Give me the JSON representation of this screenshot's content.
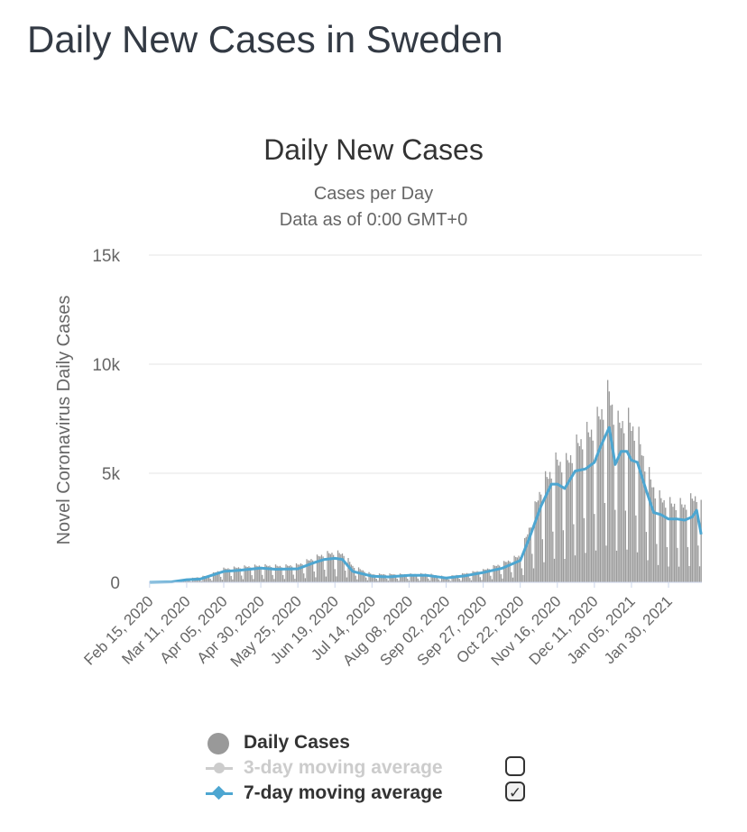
{
  "page_title": "Daily New Cases in Sweden",
  "colors": {
    "bar": "#9b9b9b",
    "ma7": "#4da6d1",
    "ma3_disabled": "#cccccc",
    "grid": "#e6e6e6"
  },
  "legend": {
    "items": [
      {
        "label": "Daily Cases",
        "checkbox": "none"
      },
      {
        "label": "3-day moving average",
        "checkbox": "unchecked"
      },
      {
        "label": "7-day moving average",
        "checkbox": "checked"
      }
    ],
    "check_glyph": "✓"
  },
  "chart_data": {
    "type": "bar",
    "title": "Daily New Cases",
    "subtitle": [
      "Cases per Day",
      "Data as of 0:00 GMT+0"
    ],
    "ylabel": "Novel Coronavirus Daily Cases",
    "ylim": [
      0,
      15000
    ],
    "yticks": [
      0,
      5000,
      10000,
      15000
    ],
    "ytick_labels": [
      "0",
      "5k",
      "10k",
      "15k"
    ],
    "x_tick_labels": [
      "Feb 15, 2020",
      "Mar 11, 2020",
      "Apr 05, 2020",
      "Apr 30, 2020",
      "May 25, 2020",
      "Jun 19, 2020",
      "Jul 14, 2020",
      "Aug 08, 2020",
      "Sep 02, 2020",
      "Sep 27, 2020",
      "Oct 22, 2020",
      "Nov 16, 2020",
      "Dec 11, 2020",
      "Jan 05, 2021",
      "Jan 30, 2021"
    ],
    "x_range": [
      "2020-02-15",
      "2021-02-21"
    ],
    "grid": true,
    "legend_position": "bottom",
    "series": [
      {
        "name": "Daily Cases",
        "type": "bar",
        "weekly_pattern": [
          0.25,
          1.35,
          1.25,
          1.2,
          1.25,
          1.15,
          0.55
        ],
        "trend": [
          [
            "2020-02-15",
            0
          ],
          [
            "2020-03-01",
            20
          ],
          [
            "2020-03-11",
            120
          ],
          [
            "2020-03-25",
            250
          ],
          [
            "2020-04-05",
            500
          ],
          [
            "2020-04-20",
            580
          ],
          [
            "2020-04-30",
            620
          ],
          [
            "2020-05-15",
            600
          ],
          [
            "2020-05-25",
            650
          ],
          [
            "2020-06-05",
            900
          ],
          [
            "2020-06-12",
            1050
          ],
          [
            "2020-06-19",
            1100
          ],
          [
            "2020-06-25",
            1050
          ],
          [
            "2020-07-01",
            600
          ],
          [
            "2020-07-14",
            300
          ],
          [
            "2020-08-08",
            300
          ],
          [
            "2020-08-20",
            320
          ],
          [
            "2020-09-02",
            200
          ],
          [
            "2020-09-27",
            450
          ],
          [
            "2020-10-10",
            700
          ],
          [
            "2020-10-22",
            1000
          ],
          [
            "2020-10-28",
            2000
          ],
          [
            "2020-11-05",
            3500
          ],
          [
            "2020-11-16",
            4500
          ],
          [
            "2020-11-21",
            4300
          ],
          [
            "2020-12-01",
            5200
          ],
          [
            "2020-12-11",
            5700
          ],
          [
            "2020-12-21",
            7000
          ],
          [
            "2020-12-26",
            5800
          ],
          [
            "2021-01-02",
            6000
          ],
          [
            "2021-01-09",
            5500
          ],
          [
            "2021-01-15",
            4200
          ],
          [
            "2021-01-22",
            3200
          ],
          [
            "2021-01-30",
            2900
          ],
          [
            "2021-02-10",
            2850
          ],
          [
            "2021-02-18",
            3200
          ],
          [
            "2021-02-21",
            2800
          ]
        ]
      },
      {
        "name": "7-day moving average",
        "type": "line",
        "points": [
          [
            "2020-02-15",
            0
          ],
          [
            "2020-03-01",
            20
          ],
          [
            "2020-03-11",
            120
          ],
          [
            "2020-03-20",
            150
          ],
          [
            "2020-04-05",
            500
          ],
          [
            "2020-04-15",
            550
          ],
          [
            "2020-04-30",
            650
          ],
          [
            "2020-05-10",
            600
          ],
          [
            "2020-05-25",
            620
          ],
          [
            "2020-06-05",
            900
          ],
          [
            "2020-06-12",
            1050
          ],
          [
            "2020-06-19",
            1100
          ],
          [
            "2020-06-24",
            1050
          ],
          [
            "2020-07-01",
            500
          ],
          [
            "2020-07-14",
            280
          ],
          [
            "2020-07-25",
            250
          ],
          [
            "2020-08-08",
            320
          ],
          [
            "2020-08-20",
            320
          ],
          [
            "2020-09-02",
            200
          ],
          [
            "2020-09-15",
            300
          ],
          [
            "2020-09-27",
            450
          ],
          [
            "2020-10-10",
            650
          ],
          [
            "2020-10-22",
            1000
          ],
          [
            "2020-10-28",
            2000
          ],
          [
            "2020-11-05",
            3500
          ],
          [
            "2020-11-12",
            4500
          ],
          [
            "2020-11-16",
            4500
          ],
          [
            "2020-11-21",
            4300
          ],
          [
            "2020-11-28",
            5100
          ],
          [
            "2020-12-05",
            5200
          ],
          [
            "2020-12-11",
            5500
          ],
          [
            "2020-12-15",
            6200
          ],
          [
            "2020-12-21",
            7100
          ],
          [
            "2020-12-25",
            5400
          ],
          [
            "2020-12-29",
            6000
          ],
          [
            "2021-01-02",
            6000
          ],
          [
            "2021-01-05",
            5600
          ],
          [
            "2021-01-09",
            5500
          ],
          [
            "2021-01-15",
            4200
          ],
          [
            "2021-01-20",
            3200
          ],
          [
            "2021-01-25",
            3100
          ],
          [
            "2021-01-30",
            2900
          ],
          [
            "2021-02-05",
            2900
          ],
          [
            "2021-02-10",
            2850
          ],
          [
            "2021-02-15",
            3000
          ],
          [
            "2021-02-18",
            3300
          ],
          [
            "2021-02-21",
            2200
          ]
        ]
      }
    ]
  }
}
